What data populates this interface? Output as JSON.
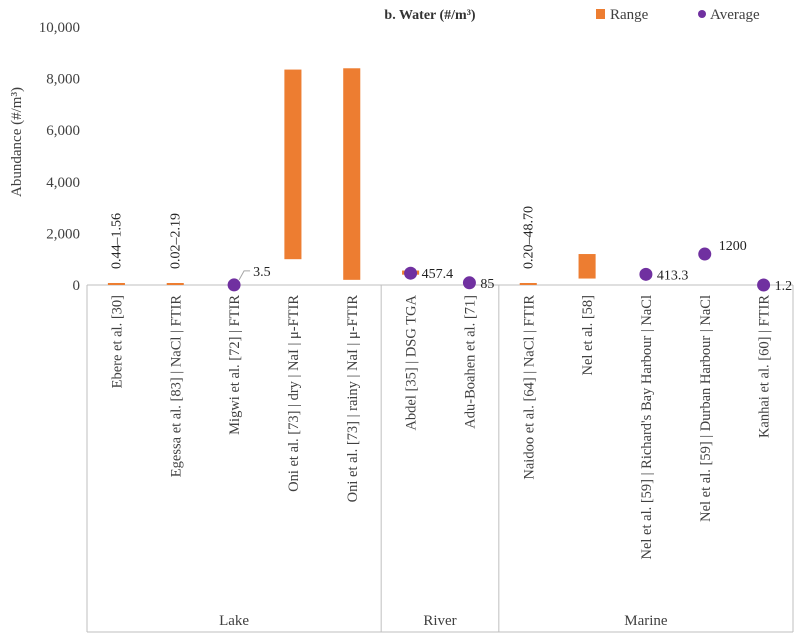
{
  "chart_data": {
    "type": "bar",
    "title": "b. Water (#/m³)",
    "ylabel": "Abundance (#/m³)",
    "xlabel": "",
    "ylim": [
      0,
      10000
    ],
    "yticks": [
      0,
      2000,
      4000,
      6000,
      8000,
      10000
    ],
    "ytick_labels": [
      "0",
      "2,000",
      "4,000",
      "6,000",
      "8,000",
      "10,000"
    ],
    "grid": false,
    "legend_position": "top-right",
    "legend": [
      {
        "name": "Range",
        "color": "#ED7D31",
        "marker": "square"
      },
      {
        "name": "Average",
        "color": "#7030A0",
        "marker": "circle"
      }
    ],
    "colors": {
      "range": "#ED7D31",
      "average": "#7030A0",
      "axis": "#BFBFBF"
    },
    "categories": [
      "Ebere et al. [30]",
      "Egessa et al. [83] | NaCl | FTIR",
      "Migwi et al. [72] | FTIR",
      "Oni et al. [73] | dry | NaI | μ-FTIR",
      "Oni et al. [73] | rainy  | NaI | μ-FTIR",
      "Abdel [35] | DSG TGA",
      "Adu-Boahen et al. [71]",
      "Naidoo et al. [64] | NaCl | FTIR",
      "Nel et al. [58]",
      "Nel et al. [59] | Richard's Bay Harbour | NaCl",
      "Nel et al. [59] | Durban Harbour | NaCl",
      "Kanhai et al. [60] | FTIR"
    ],
    "groups": [
      {
        "name": "Lake",
        "start": 0,
        "end": 4
      },
      {
        "name": "River",
        "start": 5,
        "end": 6
      },
      {
        "name": "Marine",
        "start": 7,
        "end": 11
      }
    ],
    "range_low": [
      0.44,
      0.02,
      null,
      1000,
      200,
      400,
      null,
      0.2,
      250,
      null,
      null,
      null
    ],
    "range_high": [
      1.56,
      2.19,
      null,
      8350,
      8400,
      560,
      null,
      48.7,
      1200,
      null,
      null,
      null
    ],
    "average": [
      null,
      null,
      3.5,
      null,
      null,
      457.4,
      85,
      null,
      null,
      413.3,
      1200,
      1.2
    ],
    "data_labels": [
      {
        "index": 0,
        "text": "0.44–1.56",
        "orientation": "vertical"
      },
      {
        "index": 1,
        "text": "0.02–2.19",
        "orientation": "vertical"
      },
      {
        "index": 2,
        "text": "3.5",
        "orientation": "horizontal"
      },
      {
        "index": 5,
        "text": "457.4",
        "orientation": "horizontal"
      },
      {
        "index": 6,
        "text": "85",
        "orientation": "horizontal"
      },
      {
        "index": 7,
        "text": "0.20–48.70",
        "orientation": "vertical"
      },
      {
        "index": 9,
        "text": "413.3",
        "orientation": "horizontal"
      },
      {
        "index": 10,
        "text": "1200",
        "orientation": "horizontal"
      },
      {
        "index": 11,
        "text": "1.2",
        "orientation": "horizontal"
      }
    ]
  }
}
